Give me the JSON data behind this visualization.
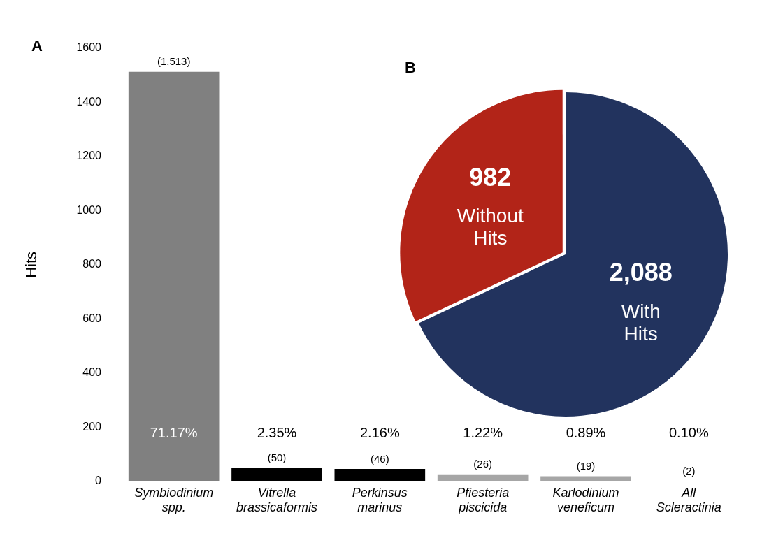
{
  "chart_data": [
    {
      "type": "bar",
      "title": "A",
      "ylabel": "Hits",
      "categories": [
        "Symbiodinium spp.",
        "Vitrella brassicaformis",
        "Perkinsus marinus",
        "Pfiesteria piscicida",
        "Karlodinium veneficum",
        "All Scleractinia"
      ],
      "values": [
        1513,
        50,
        46,
        26,
        19,
        2
      ],
      "colors": [
        "#808080",
        "#000000",
        "#000000",
        "#a6a6a6",
        "#a6a6a6",
        "#4472c4"
      ],
      "value_labels": [
        "(1,513)",
        "(50)",
        "(46)",
        "(26)",
        "(19)",
        "(2)"
      ],
      "ylim": [
        0,
        1600
      ],
      "yticks": [
        0,
        200,
        400,
        600,
        800,
        1000,
        1200,
        1400,
        1600
      ],
      "grid": false,
      "legend": false,
      "annotations": [
        "71.17%",
        "2.35%",
        "2.16%",
        "1.22%",
        "0.89%",
        "0.10%"
      ]
    },
    {
      "type": "pie",
      "title": "B",
      "categories": [
        "With Hits",
        "Without Hits"
      ],
      "values": [
        2088,
        982
      ],
      "colors": [
        "#22335e",
        "#b22418"
      ],
      "value_labels": [
        "2,088",
        "982"
      ],
      "legend": false
    }
  ]
}
